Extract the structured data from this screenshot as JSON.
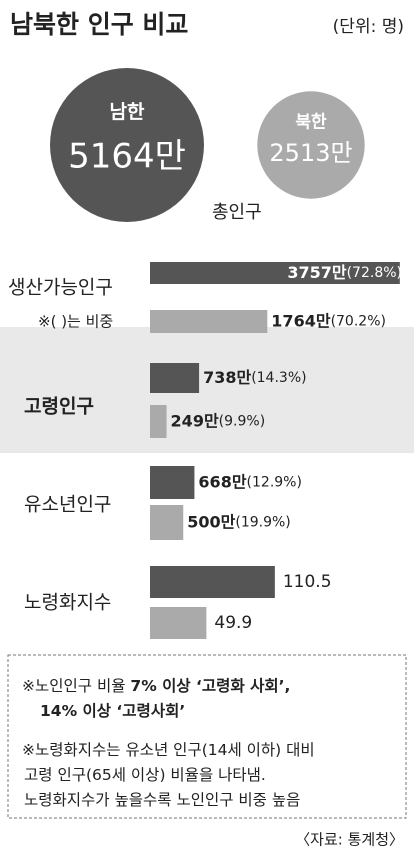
{
  "title": "남북한 인구 비교",
  "unit": "(단위: 명)",
  "totals": {
    "caption": "총인구",
    "items": [
      {
        "name": "남한",
        "value": 5164,
        "label": "5164만"
      },
      {
        "name": "북한",
        "value": 2513,
        "label": "2513만"
      }
    ]
  },
  "groups": [
    {
      "label": "생산가능인구",
      "sublabel": "※(  )는 비중",
      "values": [
        3757,
        1764
      ],
      "value_labels": [
        "3757만",
        "1764만"
      ],
      "share_labels": [
        "(72.8%)",
        "(70.2%)"
      ]
    },
    {
      "label": "고령인구",
      "bold": true,
      "highlight": true,
      "values": [
        738,
        249
      ],
      "value_labels": [
        "738만",
        "249만"
      ],
      "share_labels": [
        "(14.3%)",
        "(9.9%)"
      ]
    },
    {
      "label": "유소년인구",
      "values": [
        668,
        500
      ],
      "value_labels": [
        "668만",
        "500만"
      ],
      "share_labels": [
        "(12.9%)",
        "(19.9%)"
      ]
    },
    {
      "label": "노령화지수",
      "index": true,
      "values": [
        110.5,
        49.9
      ]
    }
  ],
  "colors": [
    "#555555",
    "#aaaaaa"
  ],
  "notes": [
    {
      "lines": [
        [
          {
            "text": "※노인인구 비율 ",
            "bold": false
          },
          {
            "text": "7% 이상 ‘고령화 사회’,",
            "bold": true
          }
        ],
        [
          {
            "text": "14% 이상 ‘고령사회’",
            "bold": true
          }
        ]
      ]
    },
    {
      "lines": [
        [
          {
            "text": "※노령화지수는 유소년 인구(14세 이하) 대비",
            "bold": false
          }
        ],
        [
          {
            "text": "고령 인구(65세 이상) 비율을 나타냄.",
            "bold": false
          }
        ],
        [
          {
            "text": "노령화지수가 높을수록 노인인구 비중 높음",
            "bold": false
          }
        ]
      ]
    }
  ],
  "source": "〈자료: 통계청〉"
}
